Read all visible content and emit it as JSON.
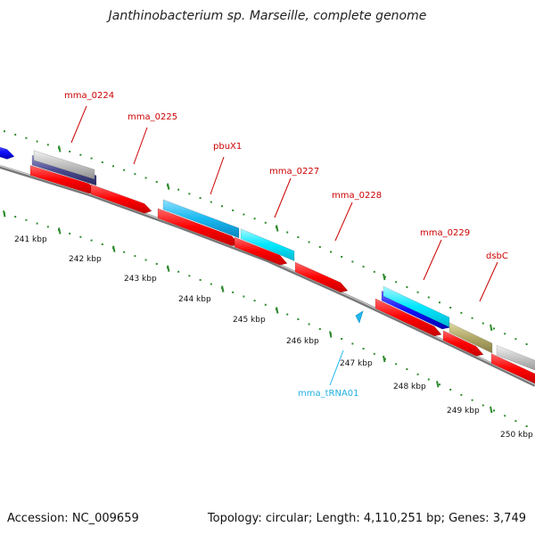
{
  "title": "Janthinobacterium sp. Marseille, complete genome",
  "footer": {
    "accession": "Accession: NC_009659",
    "summary": "Topology: circular; Length: 4,110,251 bp; Genes: 3,749"
  },
  "colors": {
    "red_cds": "#ff0000",
    "cyan_gene": "#00e0ff",
    "sky_gene": "#00b4f0",
    "blue_gene": "#0000ff",
    "navy_gene": "#4a4a90",
    "silver_gene": "#b8b8b8",
    "khaki_gene": "#b0a868",
    "label_red": "#cc0000",
    "label_trna": "#00aadd",
    "tick_green": "#2e8b2e",
    "backbone": "#888888"
  },
  "axis_labels": [
    "241 kbp",
    "242 kbp",
    "243 kbp",
    "244 kbp",
    "245 kbp",
    "246 kbp",
    "247 kbp",
    "248 kbp",
    "249 kbp",
    "250 kbp"
  ],
  "gene_labels": [
    "mma_0224",
    "mma_0225",
    "pbuX1",
    "mma_0227",
    "mma_0228",
    "mma_0229",
    "dsbC",
    "mma_tRNA01"
  ]
}
